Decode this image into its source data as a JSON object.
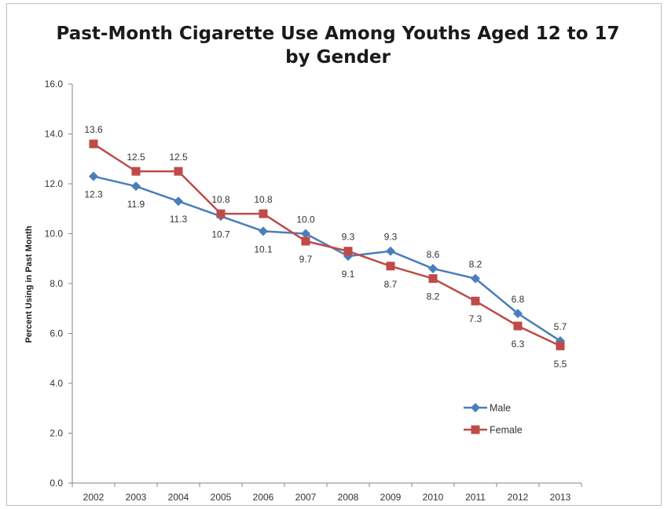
{
  "chart_data": {
    "type": "line",
    "title_line1": "Past-Month Cigarette Use Among Youths Aged 12 to 17",
    "title_line2": "by Gender",
    "xlabel": "",
    "ylabel": "Percent Using in Past Month",
    "categories": [
      "2002",
      "2003",
      "2004",
      "2005",
      "2006",
      "2007",
      "2008",
      "2009",
      "2010",
      "2011",
      "2012",
      "2013"
    ],
    "yticks": [
      "0.0",
      "2.0",
      "4.0",
      "6.0",
      "8.0",
      "10.0",
      "12.0",
      "14.0",
      "16.0"
    ],
    "ylim": [
      0,
      16
    ],
    "grid": false,
    "legend_position": "bottom-right",
    "series": [
      {
        "name": "Male",
        "color": "#4a7ebb",
        "marker": "diamond",
        "values": [
          12.3,
          11.9,
          11.3,
          10.7,
          10.1,
          10.0,
          9.1,
          9.3,
          8.6,
          8.2,
          6.8,
          5.7
        ],
        "labels": [
          "12.3",
          "11.9",
          "11.3",
          "10.7",
          "10.1",
          "10.0",
          "9.1",
          "9.3",
          "8.6",
          "8.2",
          "6.8",
          "5.7"
        ]
      },
      {
        "name": "Female",
        "color": "#be4b48",
        "marker": "square",
        "values": [
          13.6,
          12.5,
          12.5,
          10.8,
          10.8,
          9.7,
          9.3,
          8.7,
          8.2,
          7.3,
          6.3,
          5.5
        ],
        "labels": [
          "13.6",
          "12.5",
          "12.5",
          "10.8",
          "10.8",
          "9.7",
          "9.3",
          "8.7",
          "8.2",
          "7.3",
          "6.3",
          "5.5"
        ]
      }
    ]
  }
}
